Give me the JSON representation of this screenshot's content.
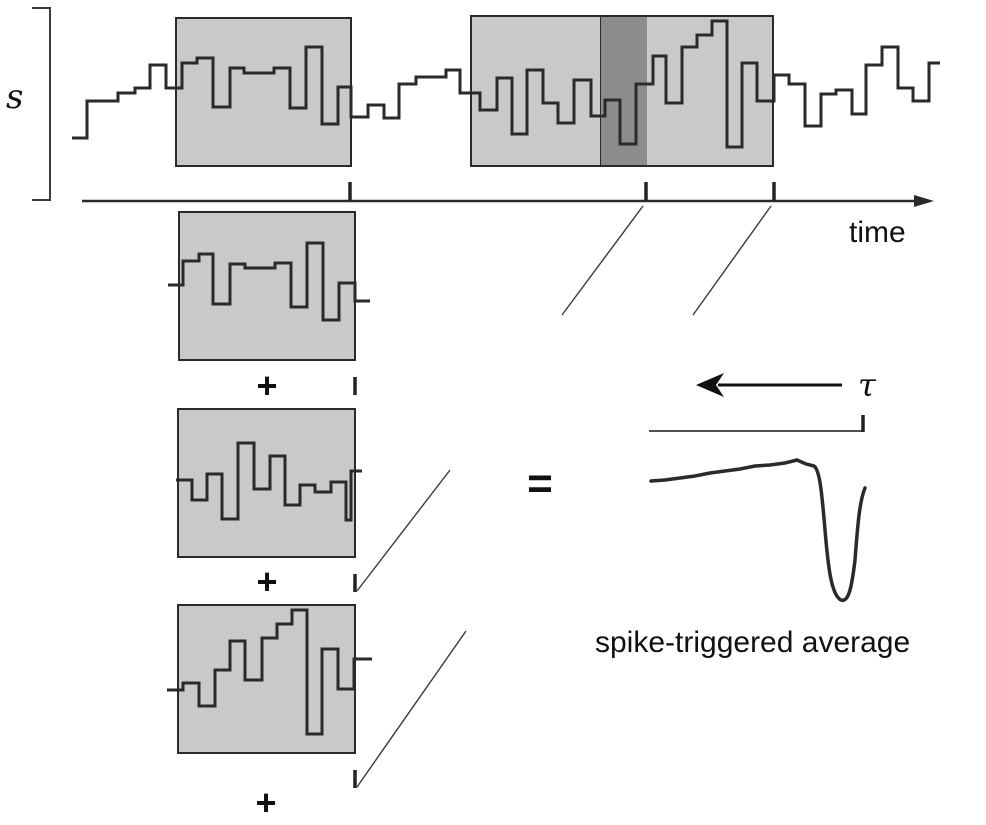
{
  "labels": {
    "stimulus_symbol": "s",
    "time_axis": "time",
    "lag_symbol": "τ",
    "sum_sign": "+",
    "equals_sign": "=",
    "result_caption": "spike-triggered average"
  },
  "colors": {
    "window_fill": "#c9c9c9",
    "overlap_fill": "#8c8c8c",
    "trace": "#2a2a2a"
  }
}
